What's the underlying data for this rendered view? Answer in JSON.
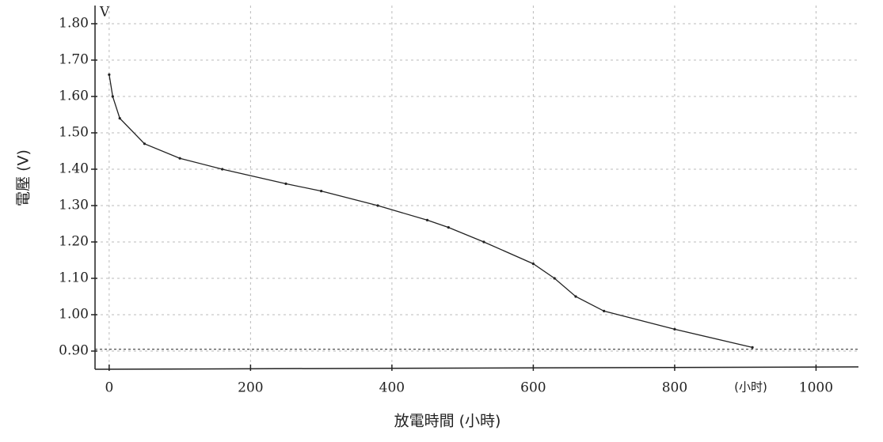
{
  "chart_data": {
    "type": "line",
    "y_axis_label": "電壓 (V)",
    "x_axis_label": "放電時間 (小時)",
    "y_unit": "V",
    "x_unit": "(小时)",
    "x": [
      0,
      5,
      15,
      50,
      100,
      160,
      250,
      300,
      380,
      450,
      480,
      530,
      600,
      630,
      660,
      700,
      800,
      910
    ],
    "values": [
      1.66,
      1.6,
      1.54,
      1.47,
      1.43,
      1.4,
      1.36,
      1.34,
      1.3,
      1.26,
      1.24,
      1.2,
      1.14,
      1.1,
      1.05,
      1.01,
      0.96,
      0.91
    ],
    "color": "#222222",
    "reference_line": 0.905,
    "xlim": [
      -20,
      1060
    ],
    "xticks": [
      0,
      200,
      400,
      600,
      800,
      1000
    ],
    "ylim": [
      0.85,
      1.85
    ],
    "yticks": [
      {
        "value": 0.9,
        "label": "0.90"
      },
      {
        "value": 1.0,
        "label": "1.00"
      },
      {
        "value": 1.1,
        "label": "1.10"
      },
      {
        "value": 1.2,
        "label": "1.20"
      },
      {
        "value": 1.3,
        "label": "1.30"
      },
      {
        "value": 1.4,
        "label": "1.40"
      },
      {
        "value": 1.5,
        "label": "1.50"
      },
      {
        "value": 1.6,
        "label": "1.60"
      },
      {
        "value": 1.7,
        "label": "1.70"
      },
      {
        "value": 1.8,
        "label": "1.80"
      }
    ],
    "grid": true
  }
}
